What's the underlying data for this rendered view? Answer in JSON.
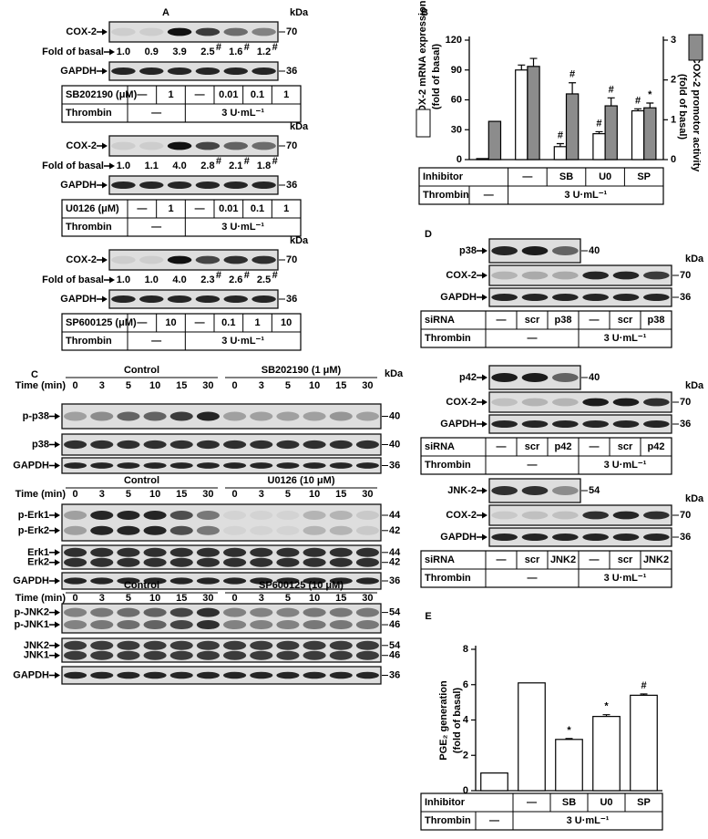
{
  "panel_a": {
    "letter": "A",
    "blocks": [
      {
        "kda": "kDa",
        "target": "COX-2",
        "target_size": 70,
        "fold_label": "Fold of basal",
        "fold": [
          "1.0",
          "0.9",
          "3.9",
          "2.5",
          "1.6",
          "1.2"
        ],
        "fold_sig": [
          null,
          null,
          null,
          "#",
          "#",
          "#"
        ],
        "loading": "GAPDH",
        "loading_size": 36,
        "treatment": {
          "label": "SB202190 (μM)",
          "cells": [
            "—",
            "1",
            "—",
            "0.01",
            "0.1",
            "1"
          ]
        },
        "thrombin": {
          "label": "Thrombin",
          "cells": [
            "—",
            "3 U·mL⁻¹"
          ]
        }
      },
      {
        "kda": "kDa",
        "target": "COX-2",
        "target_size": 70,
        "fold_label": "Fold of basal",
        "fold": [
          "1.0",
          "1.1",
          "4.0",
          "2.8",
          "2.1",
          "1.8"
        ],
        "fold_sig": [
          null,
          null,
          null,
          "#",
          "#",
          "#"
        ],
        "loading": "GAPDH",
        "loading_size": 36,
        "treatment": {
          "label": "U0126 (μM)",
          "cells": [
            "—",
            "1",
            "—",
            "0.01",
            "0.1",
            "1"
          ]
        },
        "thrombin": {
          "label": "Thrombin",
          "cells": [
            "—",
            "3 U·mL⁻¹"
          ]
        }
      },
      {
        "kda": "kDa",
        "target": "COX-2",
        "target_size": 70,
        "fold_label": "Fold of basal",
        "fold": [
          "1.0",
          "1.0",
          "4.0",
          "2.3",
          "2.6",
          "2.5"
        ],
        "fold_sig": [
          null,
          null,
          null,
          "#",
          "#",
          "#"
        ],
        "loading": "GAPDH",
        "loading_size": 36,
        "treatment": {
          "label": "SP600125 (μM)",
          "cells": [
            "—",
            "10",
            "—",
            "0.1",
            "1",
            "10"
          ]
        },
        "thrombin": {
          "label": "Thrombin",
          "cells": [
            "—",
            "3 U·mL⁻¹"
          ]
        }
      }
    ]
  },
  "panel_c": {
    "letter": "C",
    "kda": "kDa",
    "blocks": [
      {
        "time_label": "Time (min)",
        "times": [
          0,
          3,
          5,
          10,
          15,
          30
        ],
        "control": "Control",
        "inhibitor": "SB202190 (1 μM)",
        "rows": [
          {
            "labels": [
              "p-p38"
            ],
            "sizes": [
              40
            ]
          },
          {
            "labels": [
              "p38"
            ],
            "sizes": [
              40
            ]
          },
          {
            "labels": [
              "GAPDH"
            ],
            "sizes": [
              36
            ]
          }
        ]
      },
      {
        "time_label": "Time (min)",
        "times": [
          0,
          3,
          5,
          10,
          15,
          30
        ],
        "control": "Control",
        "inhibitor": "U0126 (10 μM)",
        "rows": [
          {
            "labels": [
              "p-Erk1",
              "p-Erk2"
            ],
            "sizes": [
              44,
              42
            ]
          },
          {
            "labels": [
              "Erk1",
              "Erk2"
            ],
            "sizes": [
              44,
              42
            ]
          },
          {
            "labels": [
              "GAPDH"
            ],
            "sizes": [
              36
            ]
          }
        ]
      },
      {
        "time_label": "Time (min)",
        "times": [
          0,
          3,
          5,
          10,
          15,
          30
        ],
        "control": "Control",
        "inhibitor": "SP600125 (10 μM)",
        "rows": [
          {
            "labels": [
              "p-JNK2",
              "p-JNK1"
            ],
            "sizes": [
              54,
              46
            ]
          },
          {
            "labels": [
              "JNK2",
              "JNK1"
            ],
            "sizes": [
              54,
              46
            ]
          },
          {
            "labels": [
              "GAPDH"
            ],
            "sizes": [
              36
            ]
          }
        ]
      }
    ]
  },
  "panel_d": {
    "letter": "D",
    "blocks": [
      {
        "probe": "p38",
        "probe_size": 40,
        "kda": "kDa",
        "target": "COX-2",
        "target_size": 70,
        "loading": "GAPDH",
        "loading_size": 36,
        "sirna": {
          "label": "siRNA",
          "cells": [
            "—",
            "scr",
            "p38",
            "—",
            "scr",
            "p38"
          ]
        },
        "thrombin": {
          "label": "Thrombin",
          "cells": [
            "—",
            "3 U·mL⁻¹"
          ]
        }
      },
      {
        "probe": "p42",
        "probe_size": 40,
        "kda": "kDa",
        "target": "COX-2",
        "target_size": 70,
        "loading": "GAPDH",
        "loading_size": 36,
        "sirna": {
          "label": "siRNA",
          "cells": [
            "—",
            "scr",
            "p42",
            "—",
            "scr",
            "p42"
          ]
        },
        "thrombin": {
          "label": "Thrombin",
          "cells": [
            "—",
            "3 U·mL⁻¹"
          ]
        }
      },
      {
        "probe": "JNK-2",
        "probe_size": 54,
        "kda": "kDa",
        "target": "COX-2",
        "target_size": 70,
        "loading": "GAPDH",
        "loading_size": 36,
        "sirna": {
          "label": "siRNA",
          "cells": [
            "—",
            "scr",
            "JNK2",
            "—",
            "scr",
            "JNK2"
          ]
        },
        "thrombin": {
          "label": "Thrombin",
          "cells": [
            "—",
            "3 U·mL⁻¹"
          ]
        }
      }
    ]
  },
  "chart_data": [
    {
      "type": "bar",
      "letter": "B",
      "y_label": [
        "COX-2 mRNA expression",
        "(fold of basal)"
      ],
      "y2_label": [
        "COX-2 promotor activity",
        "(fold of basal)"
      ],
      "ylim": [
        0,
        120
      ],
      "yticks": [
        0,
        30,
        60,
        90,
        120
      ],
      "y2lim": [
        0,
        3
      ],
      "y2ticks": [
        0,
        1,
        2,
        3
      ],
      "categories": [
        null,
        null,
        null,
        null,
        null
      ],
      "series": [
        {
          "color": "#ffffff",
          "values": [
            1,
            90,
            13,
            26,
            49
          ],
          "errors": [
            null,
            5,
            3,
            2,
            2
          ],
          "markers": [
            null,
            null,
            "#",
            "#",
            "#"
          ]
        },
        {
          "color": "#8c8c8c",
          "axis": "y2",
          "values": [
            0.96,
            2.34,
            1.65,
            1.35,
            1.3
          ],
          "errors": [
            null,
            0.2,
            0.28,
            0.2,
            0.12
          ],
          "markers": [
            null,
            null,
            "#",
            "#",
            "*"
          ]
        }
      ],
      "table": {
        "inhibitor": {
          "label": "Inhibitor",
          "cells": [
            "—",
            "SB",
            "U0",
            "SP"
          ]
        },
        "thrombin": {
          "label": "Thrombin",
          "cells": [
            "—",
            "3 U·mL⁻¹"
          ]
        }
      }
    },
    {
      "type": "bar",
      "letter": "E",
      "y_label": [
        "PGE₂ generation",
        "(fold of basal)"
      ],
      "ylim": [
        0,
        8
      ],
      "yticks": [
        0,
        2,
        4,
        6,
        8
      ],
      "categories": [
        null,
        null,
        null,
        null,
        null
      ],
      "series": [
        {
          "color": "#ffffff",
          "values": [
            1,
            6.1,
            2.9,
            4.2,
            5.4
          ],
          "errors": [
            null,
            null,
            0.05,
            0.1,
            0.07
          ],
          "markers": [
            null,
            null,
            "*",
            "*",
            "#"
          ]
        }
      ],
      "table": {
        "inhibitor": {
          "label": "Inhibitor",
          "cells": [
            "—",
            "SB",
            "U0",
            "SP"
          ]
        },
        "thrombin": {
          "label": "Thrombin",
          "cells": [
            "—",
            "3 U·mL⁻¹"
          ]
        }
      }
    }
  ]
}
